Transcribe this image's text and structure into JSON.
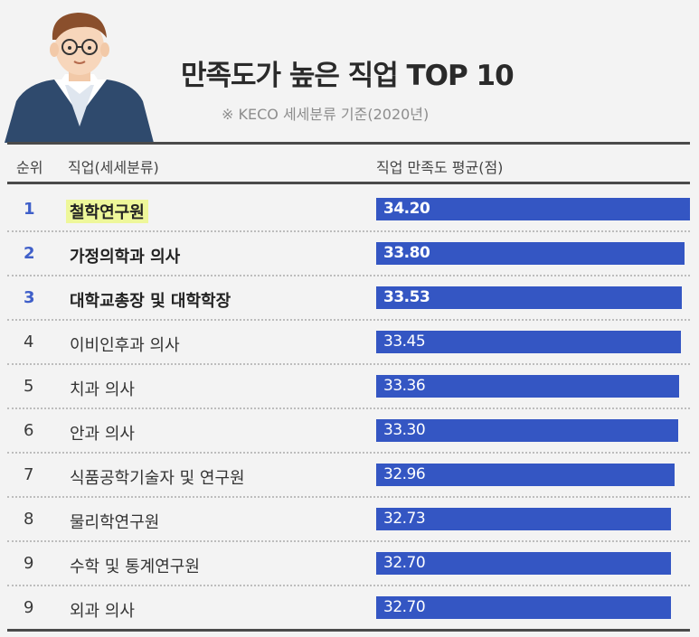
{
  "title": "만족도가 높은 직업 TOP 10",
  "subtitle": "※ KECO 세세분류 기준(2020년)",
  "headers": {
    "rank": "순위",
    "job": "직업(세세분류)",
    "score": "직업 만족도 평균(점)"
  },
  "colors": {
    "bar": "#3456c3",
    "rank_top": "#3f5fc9",
    "highlight": "#eef79a"
  },
  "chart_data": {
    "type": "bar",
    "orientation": "horizontal",
    "title": "만족도가 높은 직업 TOP 10",
    "subtitle": "※ KECO 세세분류 기준(2020년)",
    "xlabel": "직업 만족도 평균(점)",
    "ylabel": "직업(세세분류)",
    "ranks": [
      "1",
      "2",
      "3",
      "4",
      "5",
      "6",
      "7",
      "8",
      "9",
      "9"
    ],
    "categories": [
      "철학연구원",
      "가정의학과 의사",
      "대학교총장 및 대학학장",
      "이비인후과 의사",
      "치과 의사",
      "안과 의사",
      "식품공학기술자 및 연구원",
      "물리학연구원",
      "수학 및 통계연구원",
      "외과 의사"
    ],
    "values": [
      34.2,
      33.8,
      33.53,
      33.45,
      33.36,
      33.3,
      32.96,
      32.73,
      32.7,
      32.7
    ],
    "value_labels": [
      "34.20",
      "33.80",
      "33.53",
      "33.45",
      "33.36",
      "33.30",
      "32.96",
      "32.73",
      "32.70",
      "32.70"
    ]
  }
}
